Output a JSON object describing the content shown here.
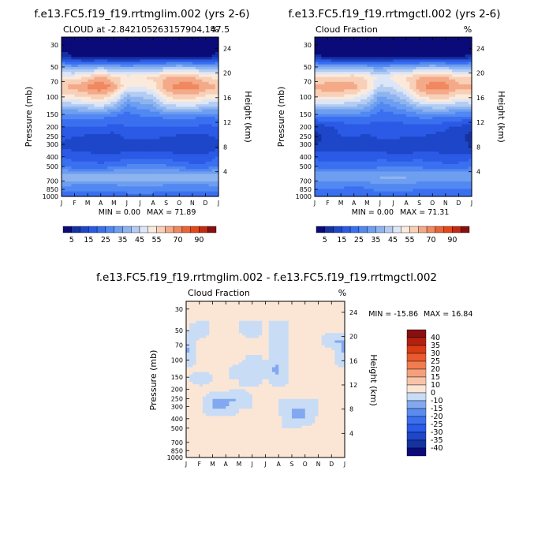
{
  "chart_data": [
    {
      "type": "heatmap",
      "title": "f.e13.FC5.f19_f19.rrtmglim.002 (yrs 2-6)",
      "subtitle": "CLOUD at -2.842105263157904,147.5",
      "unit": "%",
      "xlabel": "",
      "ylabel": "Pressure (mb)",
      "ylabel_right": "Height (km)",
      "x_ticks": [
        "J",
        "F",
        "M",
        "A",
        "M",
        "J",
        "J",
        "A",
        "S",
        "O",
        "N",
        "D",
        "J"
      ],
      "y_ticks": [
        "30",
        "50",
        "70",
        "100",
        "150",
        "200",
        "250",
        "300",
        "400",
        "500",
        "700",
        "850",
        "1000"
      ],
      "y_ticks_right": [
        "24",
        "20",
        "16",
        "12",
        "8",
        "4"
      ],
      "min_label": "MIN = 0.00",
      "max_label": "MAX = 71.89",
      "min": 0.0,
      "max": 71.89,
      "levels": [
        0,
        5,
        10,
        15,
        20,
        25,
        30,
        35,
        40,
        45,
        50,
        55,
        60,
        65,
        70,
        80,
        90,
        100
      ],
      "colorbar_labels": [
        "5",
        "15",
        "25",
        "35",
        "45",
        "55",
        "70",
        "90"
      ],
      "colors": [
        "#0a0a78",
        "#1432a0",
        "#1e46c8",
        "#2a5ae6",
        "#3a70f0",
        "#5288f2",
        "#6e9ef0",
        "#8eb4f0",
        "#b4ccf2",
        "#dce6f6",
        "#fbeadc",
        "#f8d0b8",
        "#f4aa88",
        "#f08860",
        "#ea6438",
        "#e44818",
        "#c42a10",
        "#881010"
      ],
      "z": [
        [
          0,
          0,
          0,
          0,
          0,
          0,
          0,
          0,
          0,
          0,
          0,
          0,
          0
        ],
        [
          0,
          0,
          0,
          0,
          0,
          0,
          0,
          0,
          0,
          0,
          0,
          0,
          0
        ],
        [
          10,
          5,
          2,
          2,
          2,
          2,
          3,
          3,
          3,
          4,
          3,
          3,
          10
        ],
        [
          35,
          33,
          35,
          38,
          35,
          33,
          35,
          35,
          38,
          40,
          38,
          36,
          35
        ],
        [
          52,
          52,
          56,
          62,
          56,
          52,
          55,
          56,
          60,
          60,
          60,
          56,
          52
        ],
        [
          60,
          62,
          66,
          70,
          64,
          50,
          50,
          52,
          64,
          68,
          68,
          64,
          60
        ],
        [
          52,
          54,
          56,
          58,
          52,
          38,
          40,
          44,
          55,
          58,
          58,
          54,
          52
        ],
        [
          38,
          40,
          42,
          44,
          38,
          28,
          32,
          34,
          42,
          44,
          44,
          40,
          38
        ],
        [
          26,
          26,
          26,
          26,
          24,
          22,
          24,
          24,
          26,
          26,
          26,
          24,
          26
        ],
        [
          20,
          20,
          20,
          20,
          18,
          20,
          20,
          20,
          20,
          20,
          20,
          18,
          20
        ],
        [
          16,
          15,
          14,
          13,
          13,
          16,
          16,
          16,
          15,
          14,
          13,
          14,
          16
        ],
        [
          14,
          12,
          11,
          10,
          10,
          12,
          12,
          12,
          12,
          11,
          10,
          11,
          14
        ],
        [
          20,
          18,
          18,
          16,
          16,
          18,
          18,
          18,
          18,
          16,
          16,
          16,
          20
        ],
        [
          26,
          22,
          22,
          22,
          24,
          26,
          26,
          28,
          26,
          24,
          22,
          22,
          26
        ],
        [
          40,
          40,
          40,
          40,
          40,
          40,
          38,
          38,
          40,
          40,
          40,
          40,
          40
        ],
        [
          30,
          28,
          28,
          28,
          28,
          30,
          30,
          30,
          28,
          28,
          28,
          28,
          30
        ],
        [
          20,
          20,
          20,
          22,
          22,
          22,
          22,
          22,
          22,
          20,
          20,
          20,
          20
        ]
      ]
    },
    {
      "type": "heatmap",
      "title": "f.e13.FC5.f19_f19.rrtmgctl.002 (yrs 2-6)",
      "subtitle": "Cloud Fraction",
      "unit": "%",
      "xlabel": "",
      "ylabel": "Pressure (mb)",
      "ylabel_right": "Height (km)",
      "x_ticks": [
        "J",
        "F",
        "M",
        "A",
        "M",
        "J",
        "J",
        "A",
        "S",
        "O",
        "N",
        "D",
        "J"
      ],
      "y_ticks": [
        "30",
        "50",
        "70",
        "100",
        "150",
        "200",
        "250",
        "300",
        "400",
        "500",
        "700",
        "850",
        "1000"
      ],
      "y_ticks_right": [
        "24",
        "20",
        "16",
        "12",
        "8",
        "4"
      ],
      "min_label": "MIN = 0.00",
      "max_label": "MAX = 71.31",
      "min": 0.0,
      "max": 71.31,
      "levels": [
        0,
        5,
        10,
        15,
        20,
        25,
        30,
        35,
        40,
        45,
        50,
        55,
        60,
        65,
        70,
        80,
        90,
        100
      ],
      "colorbar_labels": [
        "5",
        "15",
        "25",
        "35",
        "45",
        "55",
        "70",
        "90"
      ],
      "colors": [
        "#0a0a78",
        "#1432a0",
        "#1e46c8",
        "#2a5ae6",
        "#3a70f0",
        "#5288f2",
        "#6e9ef0",
        "#8eb4f0",
        "#b4ccf2",
        "#dce6f6",
        "#fbeadc",
        "#f8d0b8",
        "#f4aa88",
        "#f08860",
        "#ea6438",
        "#e44818",
        "#c42a10",
        "#881010"
      ],
      "z": [
        [
          0,
          0,
          0,
          0,
          0,
          0,
          0,
          0,
          0,
          0,
          0,
          0,
          0
        ],
        [
          0,
          0,
          0,
          0,
          0,
          0,
          0,
          0,
          0,
          0,
          0,
          0,
          0
        ],
        [
          8,
          4,
          2,
          2,
          2,
          2,
          3,
          3,
          3,
          4,
          3,
          3,
          8
        ],
        [
          36,
          34,
          35,
          36,
          34,
          32,
          35,
          36,
          38,
          40,
          38,
          36,
          36
        ],
        [
          54,
          54,
          56,
          58,
          54,
          48,
          52,
          56,
          60,
          62,
          60,
          56,
          54
        ],
        [
          62,
          64,
          64,
          62,
          56,
          44,
          46,
          52,
          64,
          68,
          68,
          62,
          62
        ],
        [
          54,
          55,
          54,
          52,
          46,
          34,
          38,
          44,
          54,
          58,
          58,
          52,
          54
        ],
        [
          40,
          40,
          40,
          40,
          36,
          26,
          30,
          34,
          40,
          42,
          42,
          38,
          40
        ],
        [
          24,
          26,
          26,
          26,
          24,
          22,
          22,
          24,
          26,
          26,
          26,
          24,
          24
        ],
        [
          12,
          14,
          16,
          18,
          18,
          18,
          18,
          18,
          18,
          18,
          16,
          14,
          12
        ],
        [
          8,
          12,
          15,
          15,
          14,
          16,
          16,
          15,
          15,
          14,
          13,
          12,
          8
        ],
        [
          10,
          12,
          12,
          12,
          12,
          12,
          12,
          12,
          12,
          12,
          11,
          11,
          10
        ],
        [
          18,
          18,
          18,
          18,
          18,
          18,
          16,
          16,
          18,
          18,
          16,
          16,
          18
        ],
        [
          24,
          22,
          22,
          22,
          22,
          24,
          26,
          26,
          24,
          22,
          22,
          22,
          24
        ],
        [
          36,
          36,
          36,
          36,
          36,
          36,
          36,
          36,
          36,
          36,
          36,
          36,
          36
        ],
        [
          26,
          26,
          26,
          24,
          26,
          28,
          28,
          28,
          26,
          26,
          26,
          26,
          26
        ],
        [
          20,
          20,
          20,
          20,
          22,
          22,
          22,
          22,
          22,
          20,
          20,
          20,
          20
        ]
      ]
    },
    {
      "type": "heatmap",
      "title": "f.e13.FC5.f19_f19.rrtmglim.002 - f.e13.FC5.f19_f19.rrtmgctl.002",
      "subtitle": "Cloud Fraction",
      "unit": "%",
      "xlabel": "",
      "ylabel": "Pressure (mb)",
      "ylabel_right": "Height (km)",
      "x_ticks": [
        "J",
        "F",
        "M",
        "A",
        "M",
        "J",
        "J",
        "A",
        "S",
        "O",
        "N",
        "D",
        "J"
      ],
      "y_ticks": [
        "30",
        "50",
        "70",
        "100",
        "150",
        "200",
        "250",
        "300",
        "400",
        "500",
        "700",
        "850",
        "1000"
      ],
      "y_ticks_right": [
        "24",
        "20",
        "16",
        "12",
        "8",
        "4"
      ],
      "min_label": "MIN = -15.86",
      "max_label": "MAX = 16.84",
      "min": -15.86,
      "max": 16.84,
      "levels": [
        -100,
        -40,
        -35,
        -30,
        -25,
        -20,
        -15,
        -10,
        0,
        10,
        15,
        20,
        25,
        30,
        35,
        40,
        100
      ],
      "colorbar_labels": [
        "40",
        "35",
        "30",
        "25",
        "20",
        "15",
        "10",
        "0",
        "-10",
        "-15",
        "-20",
        "-25",
        "-30",
        "-35",
        "-40"
      ],
      "colors": [
        "#0a0a78",
        "#1432a0",
        "#1e46c8",
        "#2a5ae6",
        "#3a70f0",
        "#5a8cf0",
        "#82a8f0",
        "#c8dcf6",
        "#fbe6d6",
        "#f8c4a8",
        "#f4a07c",
        "#f07c50",
        "#ea5a2c",
        "#d83c14",
        "#b42010",
        "#881010"
      ],
      "z": [
        [
          0,
          0,
          0,
          0,
          0,
          0,
          0,
          0,
          0,
          0,
          0,
          0,
          0
        ],
        [
          0,
          0,
          0,
          0,
          0,
          0,
          0,
          0,
          0,
          0,
          0,
          0,
          0
        ],
        [
          2,
          1,
          0,
          0,
          0,
          0,
          0,
          0,
          0,
          0,
          0,
          0,
          2
        ],
        [
          2,
          -11,
          2,
          2,
          1,
          -11,
          2,
          -11,
          2,
          2,
          2,
          2,
          2
        ],
        [
          -11,
          2,
          2,
          4,
          2,
          4,
          3,
          -11,
          2,
          2,
          2,
          -11,
          -11
        ],
        [
          -12,
          2,
          3,
          8,
          8,
          6,
          4,
          -11,
          2,
          2,
          2,
          2,
          -12
        ],
        [
          -11,
          2,
          2,
          6,
          6,
          -11,
          2,
          -11,
          2,
          2,
          2,
          2,
          -11
        ],
        [
          2,
          2,
          2,
          4,
          -11,
          2,
          -11,
          -11,
          2,
          2,
          2,
          2,
          2
        ],
        [
          2,
          -11,
          0,
          0,
          0,
          -11,
          2,
          -11,
          2,
          2,
          2,
          2,
          2
        ],
        [
          8,
          6,
          4,
          2,
          0,
          2,
          2,
          2,
          2,
          2,
          2,
          2,
          8
        ],
        [
          8,
          3,
          -11,
          -11,
          -11,
          0,
          0,
          0,
          0,
          0,
          0,
          2,
          8
        ],
        [
          2,
          2,
          -11,
          -11,
          0,
          0,
          0,
          0,
          -11,
          -11,
          0,
          0,
          2
        ],
        [
          2,
          2,
          2,
          2,
          2,
          0,
          0,
          2,
          -11,
          -11,
          2,
          2,
          2
        ],
        [
          2,
          2,
          0,
          0,
          2,
          2,
          0,
          0,
          0,
          2,
          2,
          2,
          2
        ],
        [
          2,
          2,
          2,
          2,
          2,
          2,
          2,
          2,
          2,
          2,
          2,
          2,
          2
        ],
        [
          2,
          2,
          2,
          2,
          2,
          2,
          2,
          2,
          2,
          2,
          2,
          2,
          2
        ],
        [
          2,
          2,
          2,
          2,
          2,
          2,
          2,
          2,
          2,
          2,
          2,
          2,
          2
        ]
      ]
    }
  ],
  "diff_title": "f.e13.FC5.f19_f19.rrtmglim.002 - f.e13.FC5.f19_f19.rrtmgctl.002"
}
